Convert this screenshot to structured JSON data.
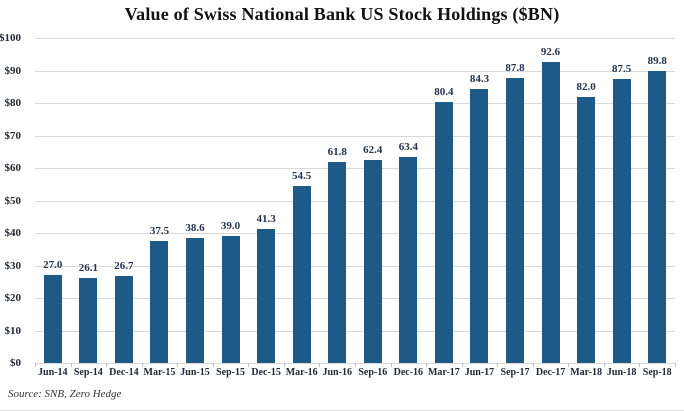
{
  "chart_data": {
    "type": "bar",
    "title": "Value of Swiss National Bank US Stock Holdings ($BN)",
    "categories": [
      "Jun-14",
      "Sep-14",
      "Dec-14",
      "Mar-15",
      "Jun-15",
      "Sep-15",
      "Dec-15",
      "Mar-16",
      "Jun-16",
      "Sep-16",
      "Dec-16",
      "Mar-17",
      "Jun-17",
      "Sep-17",
      "Dec-17",
      "Mar-18",
      "Jun-18",
      "Sep-18"
    ],
    "values": [
      27.0,
      26.1,
      26.7,
      37.5,
      38.6,
      39.0,
      41.3,
      54.5,
      61.8,
      62.4,
      63.4,
      80.4,
      84.3,
      87.8,
      92.6,
      82.0,
      87.5,
      89.8
    ],
    "value_labels": [
      "27.0",
      "26.1",
      "26.7",
      "37.5",
      "38.6",
      "39.0",
      "41.3",
      "54.5",
      "61.8",
      "62.4",
      "63.4",
      "80.4",
      "84.3",
      "87.8",
      "92.6",
      "82.0",
      "87.5",
      "89.8"
    ],
    "xlabel": "",
    "ylabel": "",
    "ylim": [
      0,
      100
    ],
    "y_ticks": [
      0,
      10,
      20,
      30,
      40,
      50,
      60,
      70,
      80,
      90,
      100
    ],
    "y_tick_prefix": "$",
    "grid": true,
    "legend": false,
    "colors": {
      "bar": "#1e5a87",
      "gridline": "#d9d9d9",
      "tick": "#c0c0c0",
      "text": "#222a35",
      "value_label": "#24344d"
    },
    "source": "Source: SNB, Zero Hedge"
  }
}
